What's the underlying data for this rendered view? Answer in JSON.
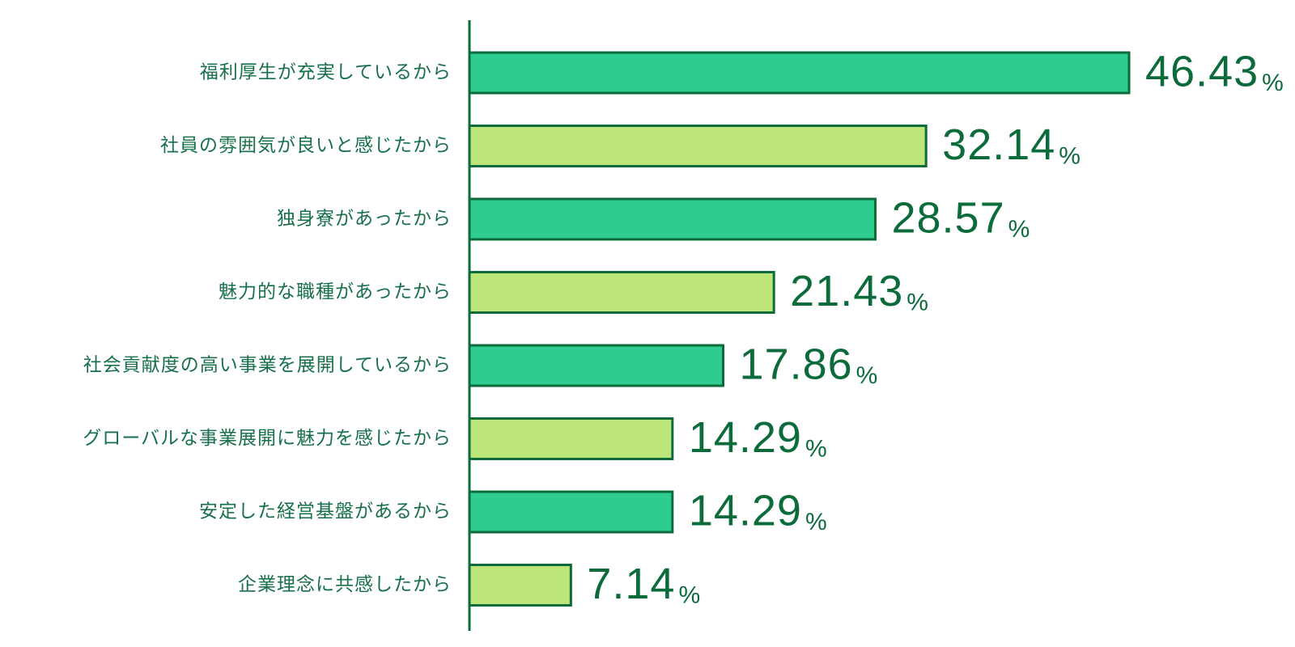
{
  "chart_data": {
    "type": "hbar",
    "categories": [
      "福利厚生が充実しているから",
      "社員の雰囲気が良いと感じたから",
      "独身寮があったから",
      "魅力的な職種があったから",
      "社会貢献度の高い事業を展開しているから",
      "グローバルな事業展開に魅力を感じたから",
      "安定した経営基盤があるから",
      "企業理念に共感したから"
    ],
    "values": [
      46.43,
      32.14,
      28.57,
      21.43,
      17.86,
      14.29,
      14.29,
      7.14
    ],
    "unit": "%",
    "colors": [
      "#2ecc8f",
      "#bce67a"
    ],
    "border_color": "#0b6b3a"
  }
}
